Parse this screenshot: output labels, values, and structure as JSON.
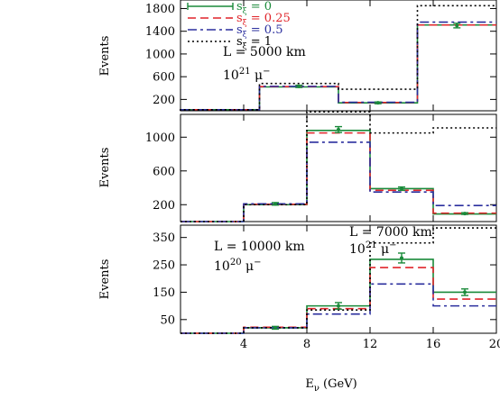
{
  "chart_data": [
    {
      "type": "line",
      "panel": "top",
      "ylabel": "Events",
      "xlabel": "",
      "xlim": [
        0,
        20
      ],
      "ylim": [
        0,
        1950
      ],
      "yticks": [
        "200",
        "600",
        "1000",
        "1400",
        "1800"
      ],
      "ytick_values": [
        200,
        600,
        1000,
        1400,
        1800
      ],
      "annotations": [
        "L = 5000 km",
        "10",
        "21",
        " μ",
        "−"
      ],
      "legend_placement": "top-left",
      "legend": [
        {
          "label_s": "s",
          "label_sub": "ξ",
          "label_eq": "= 0",
          "style": "solid",
          "color": "#1a8a3a"
        },
        {
          "label_s": "s",
          "label_sub": "ξ",
          "label_eq": "= 0.25",
          "style": "dashed",
          "color": "#e0242a"
        },
        {
          "label_s": "s",
          "label_sub": "ξ",
          "label_eq": "= 0.5",
          "style": "dashdot",
          "color": "#2b2f9e"
        },
        {
          "label_s": "s",
          "label_sub": "ξ",
          "label_eq": "= 1",
          "style": "dotted",
          "color": "#000000"
        }
      ],
      "bin_edges": [
        0,
        5,
        10,
        15,
        20
      ],
      "series": [
        {
          "name": "sξ = 0",
          "values": [
            20,
            420,
            140,
            1510
          ]
        },
        {
          "name": "sξ = 0.25",
          "values": [
            20,
            425,
            145,
            1510
          ]
        },
        {
          "name": "sξ = 0.5",
          "values": [
            20,
            430,
            150,
            1560
          ]
        },
        {
          "name": "sξ = 1",
          "values": [
            20,
            480,
            380,
            1850
          ]
        }
      ],
      "data_points": [
        {
          "x": 7.5,
          "y": 430,
          "err": 20
        },
        {
          "x": 12.5,
          "y": 140,
          "err": 15
        },
        {
          "x": 17.5,
          "y": 1500,
          "err": 40
        }
      ]
    },
    {
      "type": "line",
      "panel": "middle",
      "ylabel": "Events",
      "xlabel": "",
      "xlim": [
        0,
        20
      ],
      "ylim": [
        0,
        1270
      ],
      "yticks": [
        "200",
        "600",
        "1000"
      ],
      "ytick_values": [
        200,
        600,
        1000
      ],
      "annotations": [
        "L = 7000 km",
        "10",
        "21",
        " μ",
        "−"
      ],
      "bin_edges": [
        0,
        4,
        8,
        12,
        16,
        20
      ],
      "series": [
        {
          "name": "sξ = 0",
          "values": [
            0,
            200,
            1080,
            390,
            90
          ]
        },
        {
          "name": "sξ = 0.25",
          "values": [
            0,
            205,
            1050,
            370,
            100
          ]
        },
        {
          "name": "sξ = 0.5",
          "values": [
            0,
            210,
            940,
            350,
            190
          ]
        },
        {
          "name": "sξ = 1",
          "values": [
            0,
            200,
            1300,
            1050,
            1110
          ]
        }
      ],
      "data_points": [
        {
          "x": 6,
          "y": 210,
          "err": 15
        },
        {
          "x": 10,
          "y": 1090,
          "err": 35
        },
        {
          "x": 14,
          "y": 390,
          "err": 20
        },
        {
          "x": 18,
          "y": 95,
          "err": 10
        }
      ]
    },
    {
      "type": "line",
      "panel": "bottom",
      "ylabel": "Events",
      "xlabel": "E_ν (GeV)",
      "xlabel_main": "E",
      "xlabel_sub": "ν",
      "xlabel_unit": " (GeV)",
      "xlim": [
        0,
        20
      ],
      "ylim": [
        0,
        395
      ],
      "xticks": [
        "4",
        "8",
        "12",
        "16",
        "20"
      ],
      "xtick_values": [
        4,
        8,
        12,
        16,
        20
      ],
      "yticks": [
        "50",
        "150",
        "250",
        "350"
      ],
      "ytick_values": [
        50,
        150,
        250,
        350
      ],
      "annotations": [
        "L = 10000 km",
        "10",
        "20",
        " μ",
        "−"
      ],
      "bin_edges": [
        0,
        4,
        8,
        12,
        16,
        20
      ],
      "series": [
        {
          "name": "sξ = 0",
          "values": [
            0,
            20,
            100,
            270,
            150
          ]
        },
        {
          "name": "sξ = 0.25",
          "values": [
            0,
            22,
            90,
            240,
            125
          ]
        },
        {
          "name": "sξ = 0.5",
          "values": [
            0,
            20,
            70,
            180,
            100
          ]
        },
        {
          "name": "sξ = 1",
          "values": [
            0,
            20,
            85,
            330,
            385
          ]
        }
      ],
      "data_points": [
        {
          "x": 6,
          "y": 20,
          "err": 5
        },
        {
          "x": 10,
          "y": 100,
          "err": 12
        },
        {
          "x": 14,
          "y": 275,
          "err": 18
        },
        {
          "x": 18,
          "y": 150,
          "err": 12
        }
      ]
    }
  ],
  "colors": {
    "s0": "#1a8a3a",
    "s025": "#e0242a",
    "s05": "#2b2f9e",
    "s1": "#000000",
    "axis": "#000000",
    "background": "#ffffff"
  }
}
